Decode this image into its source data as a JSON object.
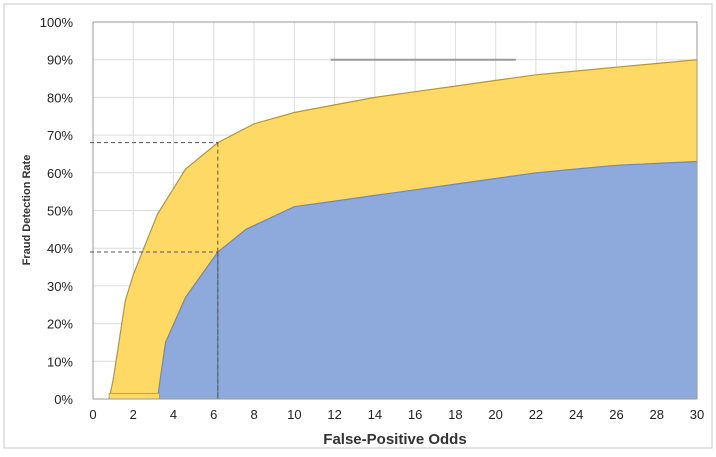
{
  "chart_data": {
    "type": "area",
    "title": "",
    "xlabel": "False-Positive Odds",
    "ylabel": "Fraud Detection Rate",
    "xlim": [
      0,
      30
    ],
    "ylim": [
      0,
      100
    ],
    "x_ticks": [
      "0",
      "2",
      "4",
      "6",
      "8",
      "10",
      "12",
      "14",
      "16",
      "18",
      "20",
      "22",
      "24",
      "26",
      "28",
      "30"
    ],
    "y_ticks": [
      "0%",
      "10%",
      "20%",
      "30%",
      "40%",
      "50%",
      "60%",
      "70%",
      "80%",
      "90%",
      "100%"
    ],
    "grid": true,
    "legend": "none",
    "series": [
      {
        "color": "#FFD966",
        "x": [
          0.8,
          1.0,
          1.2,
          1.6,
          2.0,
          3.2,
          4.6,
          6.2,
          8.0,
          10.0,
          12.0,
          14.0,
          16.0,
          18.0,
          20.0,
          22.0,
          24.0,
          26.0,
          28.0,
          30.0
        ],
        "y": [
          0,
          5,
          12,
          26,
          33,
          49,
          61,
          68,
          73,
          76,
          78,
          80,
          81.5,
          83,
          84.5,
          86,
          87,
          88,
          89,
          90
        ]
      },
      {
        "color": "#8EA9DB",
        "x": [
          3.2,
          3.6,
          4.6,
          6.2,
          7.6,
          10.0,
          12.0,
          14.0,
          16.0,
          18.0,
          20.0,
          22.0,
          24.0,
          26.0,
          28.0,
          30.0
        ],
        "y": [
          0,
          15,
          27,
          39,
          45,
          51,
          52.5,
          54,
          55.5,
          57,
          58.5,
          60,
          61,
          62,
          62.5,
          63
        ]
      }
    ],
    "baseline_region": {
      "color": "#FFD966",
      "x": [
        0.8,
        3.3
      ],
      "y": 1.5
    },
    "reference_lines": [
      {
        "x": 6.2,
        "y": 68
      },
      {
        "x": 6.2,
        "y": 39
      }
    ],
    "annotation_line": {
      "x": [
        11.8,
        21
      ],
      "y": 90
    }
  }
}
